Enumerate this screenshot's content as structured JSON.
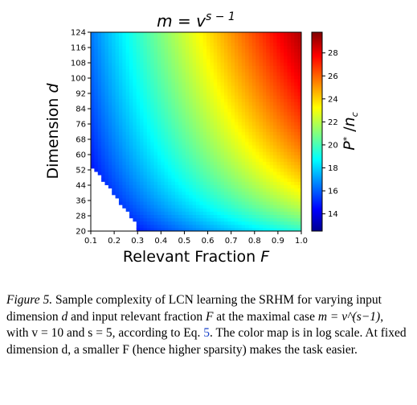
{
  "chart_data": {
    "type": "heatmap",
    "title": "m = v^(s−1)",
    "xlabel": "Relevant Fraction F",
    "ylabel": "Dimension d",
    "colorbar_label": "P* / n_c",
    "x_ticks": [
      "0.1",
      "0.2",
      "0.3",
      "0.4",
      "0.5",
      "0.6",
      "0.7",
      "0.8",
      "0.9",
      "1.0"
    ],
    "y_ticks": [
      "20",
      "28",
      "36",
      "44",
      "52",
      "60",
      "68",
      "76",
      "84",
      "92",
      "100",
      "108",
      "116",
      "124"
    ],
    "colorbar_ticks": [
      "14",
      "16",
      "18",
      "20",
      "22",
      "24",
      "26",
      "28"
    ],
    "xlim": [
      0.1,
      1.0
    ],
    "ylim": [
      20,
      124
    ],
    "color_range": [
      12.5,
      29.8
    ],
    "colormap": "jet",
    "log_color_scale": true,
    "blank_region": "lower-left (small F, small d)",
    "samples": [
      {
        "F": 0.1,
        "d": 124,
        "value": 14.0
      },
      {
        "F": 0.1,
        "d": 52,
        "value": 12.5
      },
      {
        "F": 0.3,
        "d": 20,
        "value": 13.0
      },
      {
        "F": 0.4,
        "d": 124,
        "value": 20.5
      },
      {
        "F": 0.6,
        "d": 124,
        "value": 24.0
      },
      {
        "F": 0.6,
        "d": 60,
        "value": 19.0
      },
      {
        "F": 1.0,
        "d": 124,
        "value": 29.8
      },
      {
        "F": 1.0,
        "d": 60,
        "value": 24.0
      },
      {
        "F": 1.0,
        "d": 20,
        "value": 18.5
      }
    ]
  },
  "caption": {
    "figure_label": "Figure 5.",
    "text_before": " Sample complexity of LCN learning the SRHM for varying input dimension ",
    "var_d": "d",
    "text_mid1": " and input relevant fraction ",
    "var_F": "F",
    "text_mid2": " at the maximal case ",
    "formula": "m = v^(s−1)",
    "text_mid3": ", with v = 10 and s = 5, according to Eq. ",
    "eq_ref": "5",
    "text_after": ". The color map is in log scale. At fixed dimension d, a smaller F (hence higher sparsity) makes the task easier."
  }
}
